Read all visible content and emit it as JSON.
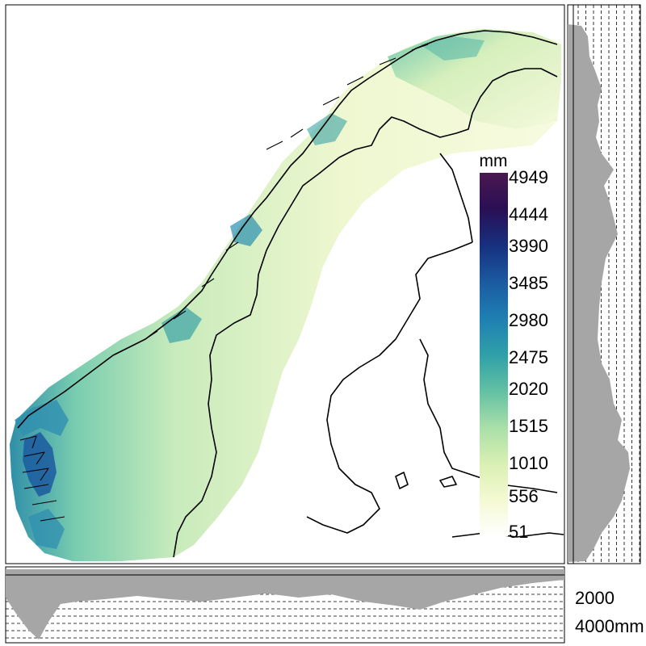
{
  "legend": {
    "unit": "mm",
    "ticks": [
      "4949",
      "4444",
      "3990",
      "3485",
      "2980",
      "2475",
      "2020",
      "1515",
      "1010",
      "556",
      "51"
    ],
    "colors": [
      "#ffffff",
      "#f4f9d2",
      "#d9f0b3",
      "#a8dfa8",
      "#62c0a4",
      "#2fa0a8",
      "#1e7fb3",
      "#1b5aa0",
      "#16307f",
      "#2a0f55",
      "#4a1850"
    ]
  },
  "bottom_axis": {
    "ticks": [
      "2000",
      "4000mm"
    ]
  },
  "colors": {
    "profile_fill": "#a6a6a6",
    "land_low": "#f4f9d8",
    "land_mid": "#a7ddb0",
    "land_high": "#1b5aa0",
    "border": "#000000"
  }
}
